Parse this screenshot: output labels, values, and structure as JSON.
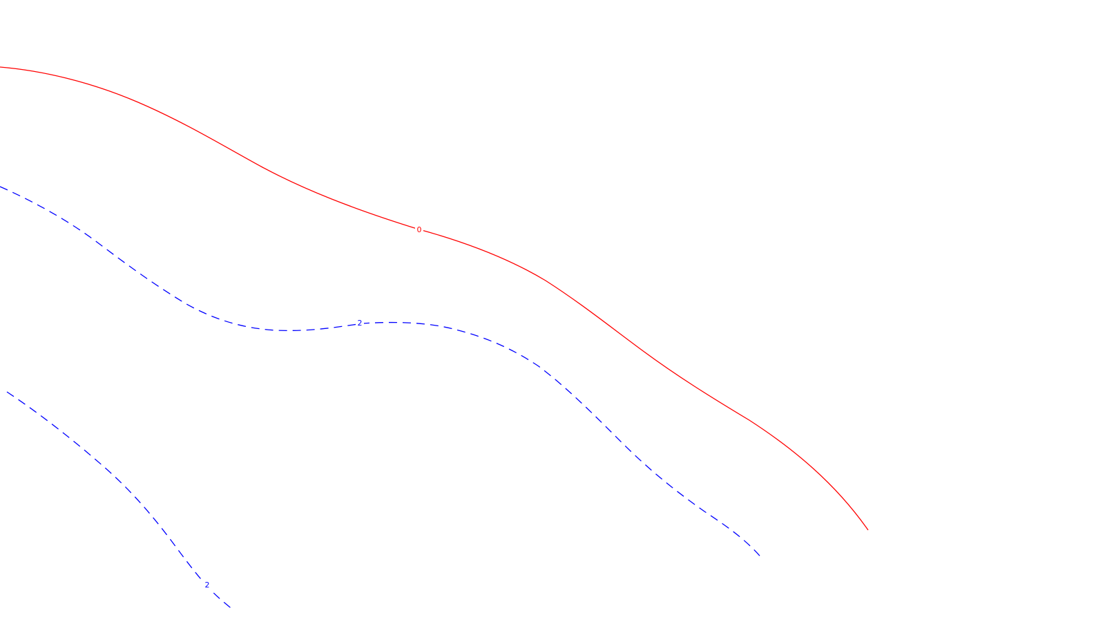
{
  "contours": [
    {
      "id": "contour-zero",
      "level": "0",
      "color": "#ff0000",
      "style": "solid"
    },
    {
      "id": "contour-two-upper",
      "level": "2",
      "color": "#0000ff",
      "style": "dashed"
    },
    {
      "id": "contour-two-lower",
      "level": "2",
      "color": "#0000ff",
      "style": "dashed"
    }
  ]
}
